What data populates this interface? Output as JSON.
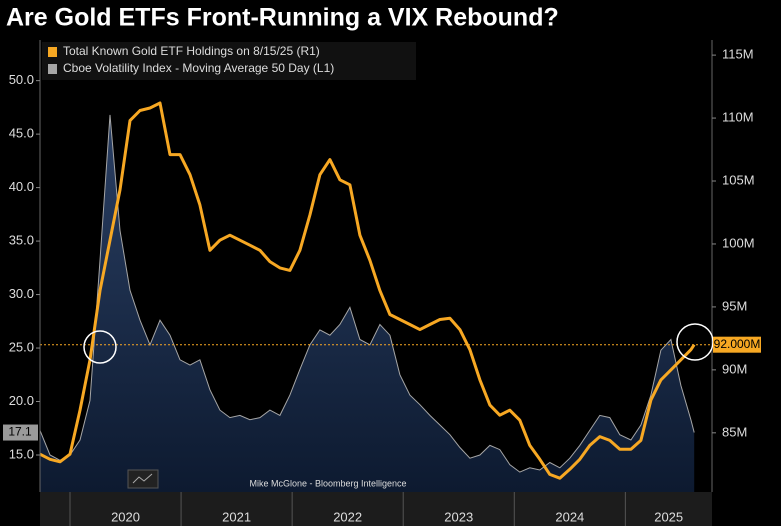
{
  "chart_data": {
    "type": "line",
    "title": "Are Gold ETFs Front-Running a VIX Rebound?",
    "credit": "Mike McGlone - Bloomberg Intelligence",
    "x": [
      2019.73,
      2019.82,
      2019.91,
      2020.0,
      2020.09,
      2020.18,
      2020.27,
      2020.36,
      2020.45,
      2020.54,
      2020.63,
      2020.72,
      2020.81,
      2020.9,
      2020.99,
      2021.08,
      2021.17,
      2021.26,
      2021.35,
      2021.44,
      2021.53,
      2021.62,
      2021.71,
      2021.8,
      2021.89,
      2021.98,
      2022.07,
      2022.16,
      2022.25,
      2022.34,
      2022.43,
      2022.52,
      2022.61,
      2022.7,
      2022.79,
      2022.88,
      2022.97,
      2023.06,
      2023.15,
      2023.24,
      2023.33,
      2023.42,
      2023.51,
      2023.6,
      2023.69,
      2023.78,
      2023.87,
      2023.96,
      2024.05,
      2024.14,
      2024.23,
      2024.32,
      2024.41,
      2024.5,
      2024.59,
      2024.68,
      2024.77,
      2024.86,
      2024.95,
      2025.05,
      2025.14,
      2025.23,
      2025.32,
      2025.41,
      2025.5,
      2025.59,
      2025.62
    ],
    "xlim": [
      2019.73,
      2025.78
    ],
    "xticks": [
      2020,
      2021,
      2022,
      2023,
      2024,
      2025
    ],
    "ylim": [
      11.54,
      53.8
    ],
    "yticks": [
      {
        "value": 15,
        "label": "15.0"
      },
      {
        "value": 20,
        "label": "20.0"
      },
      {
        "value": 25,
        "label": "25.0"
      },
      {
        "value": 30,
        "label": "30.0"
      },
      {
        "value": 35,
        "label": "35.0"
      },
      {
        "value": 40,
        "label": "40.0"
      },
      {
        "value": 45,
        "label": "45.0"
      },
      {
        "value": 50,
        "label": "50.0"
      }
    ],
    "y2lim": [
      80.3,
      116.2
    ],
    "y2ticks": [
      {
        "value": 85,
        "label": "85M"
      },
      {
        "value": 90,
        "label": "90M"
      },
      {
        "value": 95,
        "label": "95M"
      },
      {
        "value": 100,
        "label": "100M"
      },
      {
        "value": 105,
        "label": "105M"
      },
      {
        "value": 110,
        "label": "110M"
      },
      {
        "value": 115,
        "label": "115M"
      }
    ],
    "series": [
      {
        "name": "Total Known Gold ETF Holdings on 8/15/25 (R1)",
        "color": "#f7a823",
        "axis": "y2",
        "style": "line",
        "values": [
          83.3,
          82.9,
          82.7,
          83.3,
          86.8,
          90.8,
          96.3,
          100.3,
          104.3,
          109.8,
          110.6,
          110.8,
          111.2,
          107.1,
          107.1,
          105.5,
          103.1,
          99.5,
          100.3,
          100.7,
          100.3,
          99.9,
          99.5,
          98.6,
          98.1,
          97.9,
          99.5,
          102.3,
          105.5,
          106.7,
          105.1,
          104.7,
          100.7,
          98.7,
          96.3,
          94.4,
          94.0,
          93.6,
          93.2,
          93.6,
          94.0,
          94.1,
          93.2,
          91.6,
          89.2,
          87.2,
          86.4,
          86.8,
          86.0,
          84.0,
          82.9,
          81.7,
          81.4,
          82.1,
          82.9,
          84.0,
          84.7,
          84.4,
          83.7,
          83.7,
          84.4,
          87.6,
          89.2,
          90.0,
          90.8,
          91.6,
          92.0
        ],
        "value_labels": [
          null,
          null,
          null,
          null,
          null,
          null,
          null,
          null,
          null,
          null,
          null,
          null,
          null,
          null,
          null,
          null,
          null,
          null,
          null,
          null,
          null,
          null,
          null,
          null,
          null,
          null,
          null,
          null,
          null,
          null,
          null,
          null,
          null,
          null,
          null,
          null,
          null,
          null,
          null,
          null,
          null,
          null,
          null,
          null,
          null,
          null,
          null,
          null,
          null,
          null,
          null,
          null,
          null,
          null,
          null,
          null,
          null,
          null,
          null,
          null,
          null,
          null,
          null,
          null,
          null,
          null,
          "92.000M"
        ]
      },
      {
        "name": "Cboe Volatility Index - Moving Average 50 Day (L1)",
        "color": "#a6a6a6",
        "axis": "y",
        "style": "area",
        "values": [
          17.3,
          15.0,
          14.5,
          15.0,
          16.4,
          20.1,
          33.2,
          46.8,
          36.0,
          30.4,
          27.6,
          25.3,
          27.6,
          26.2,
          23.9,
          23.4,
          23.9,
          21.1,
          19.2,
          18.5,
          18.7,
          18.3,
          18.5,
          19.2,
          18.7,
          20.6,
          23.0,
          25.3,
          26.7,
          26.2,
          27.2,
          28.8,
          25.8,
          25.3,
          27.2,
          26.2,
          22.5,
          20.6,
          19.7,
          18.7,
          17.8,
          16.9,
          15.7,
          14.7,
          15.0,
          15.9,
          15.5,
          14.1,
          13.4,
          13.8,
          13.6,
          14.3,
          13.8,
          14.7,
          15.9,
          17.3,
          18.7,
          18.5,
          16.9,
          16.4,
          17.8,
          20.6,
          24.8,
          25.8,
          21.5,
          18.3,
          17.1
        ]
      }
    ],
    "legend": "upper left"
  }
}
